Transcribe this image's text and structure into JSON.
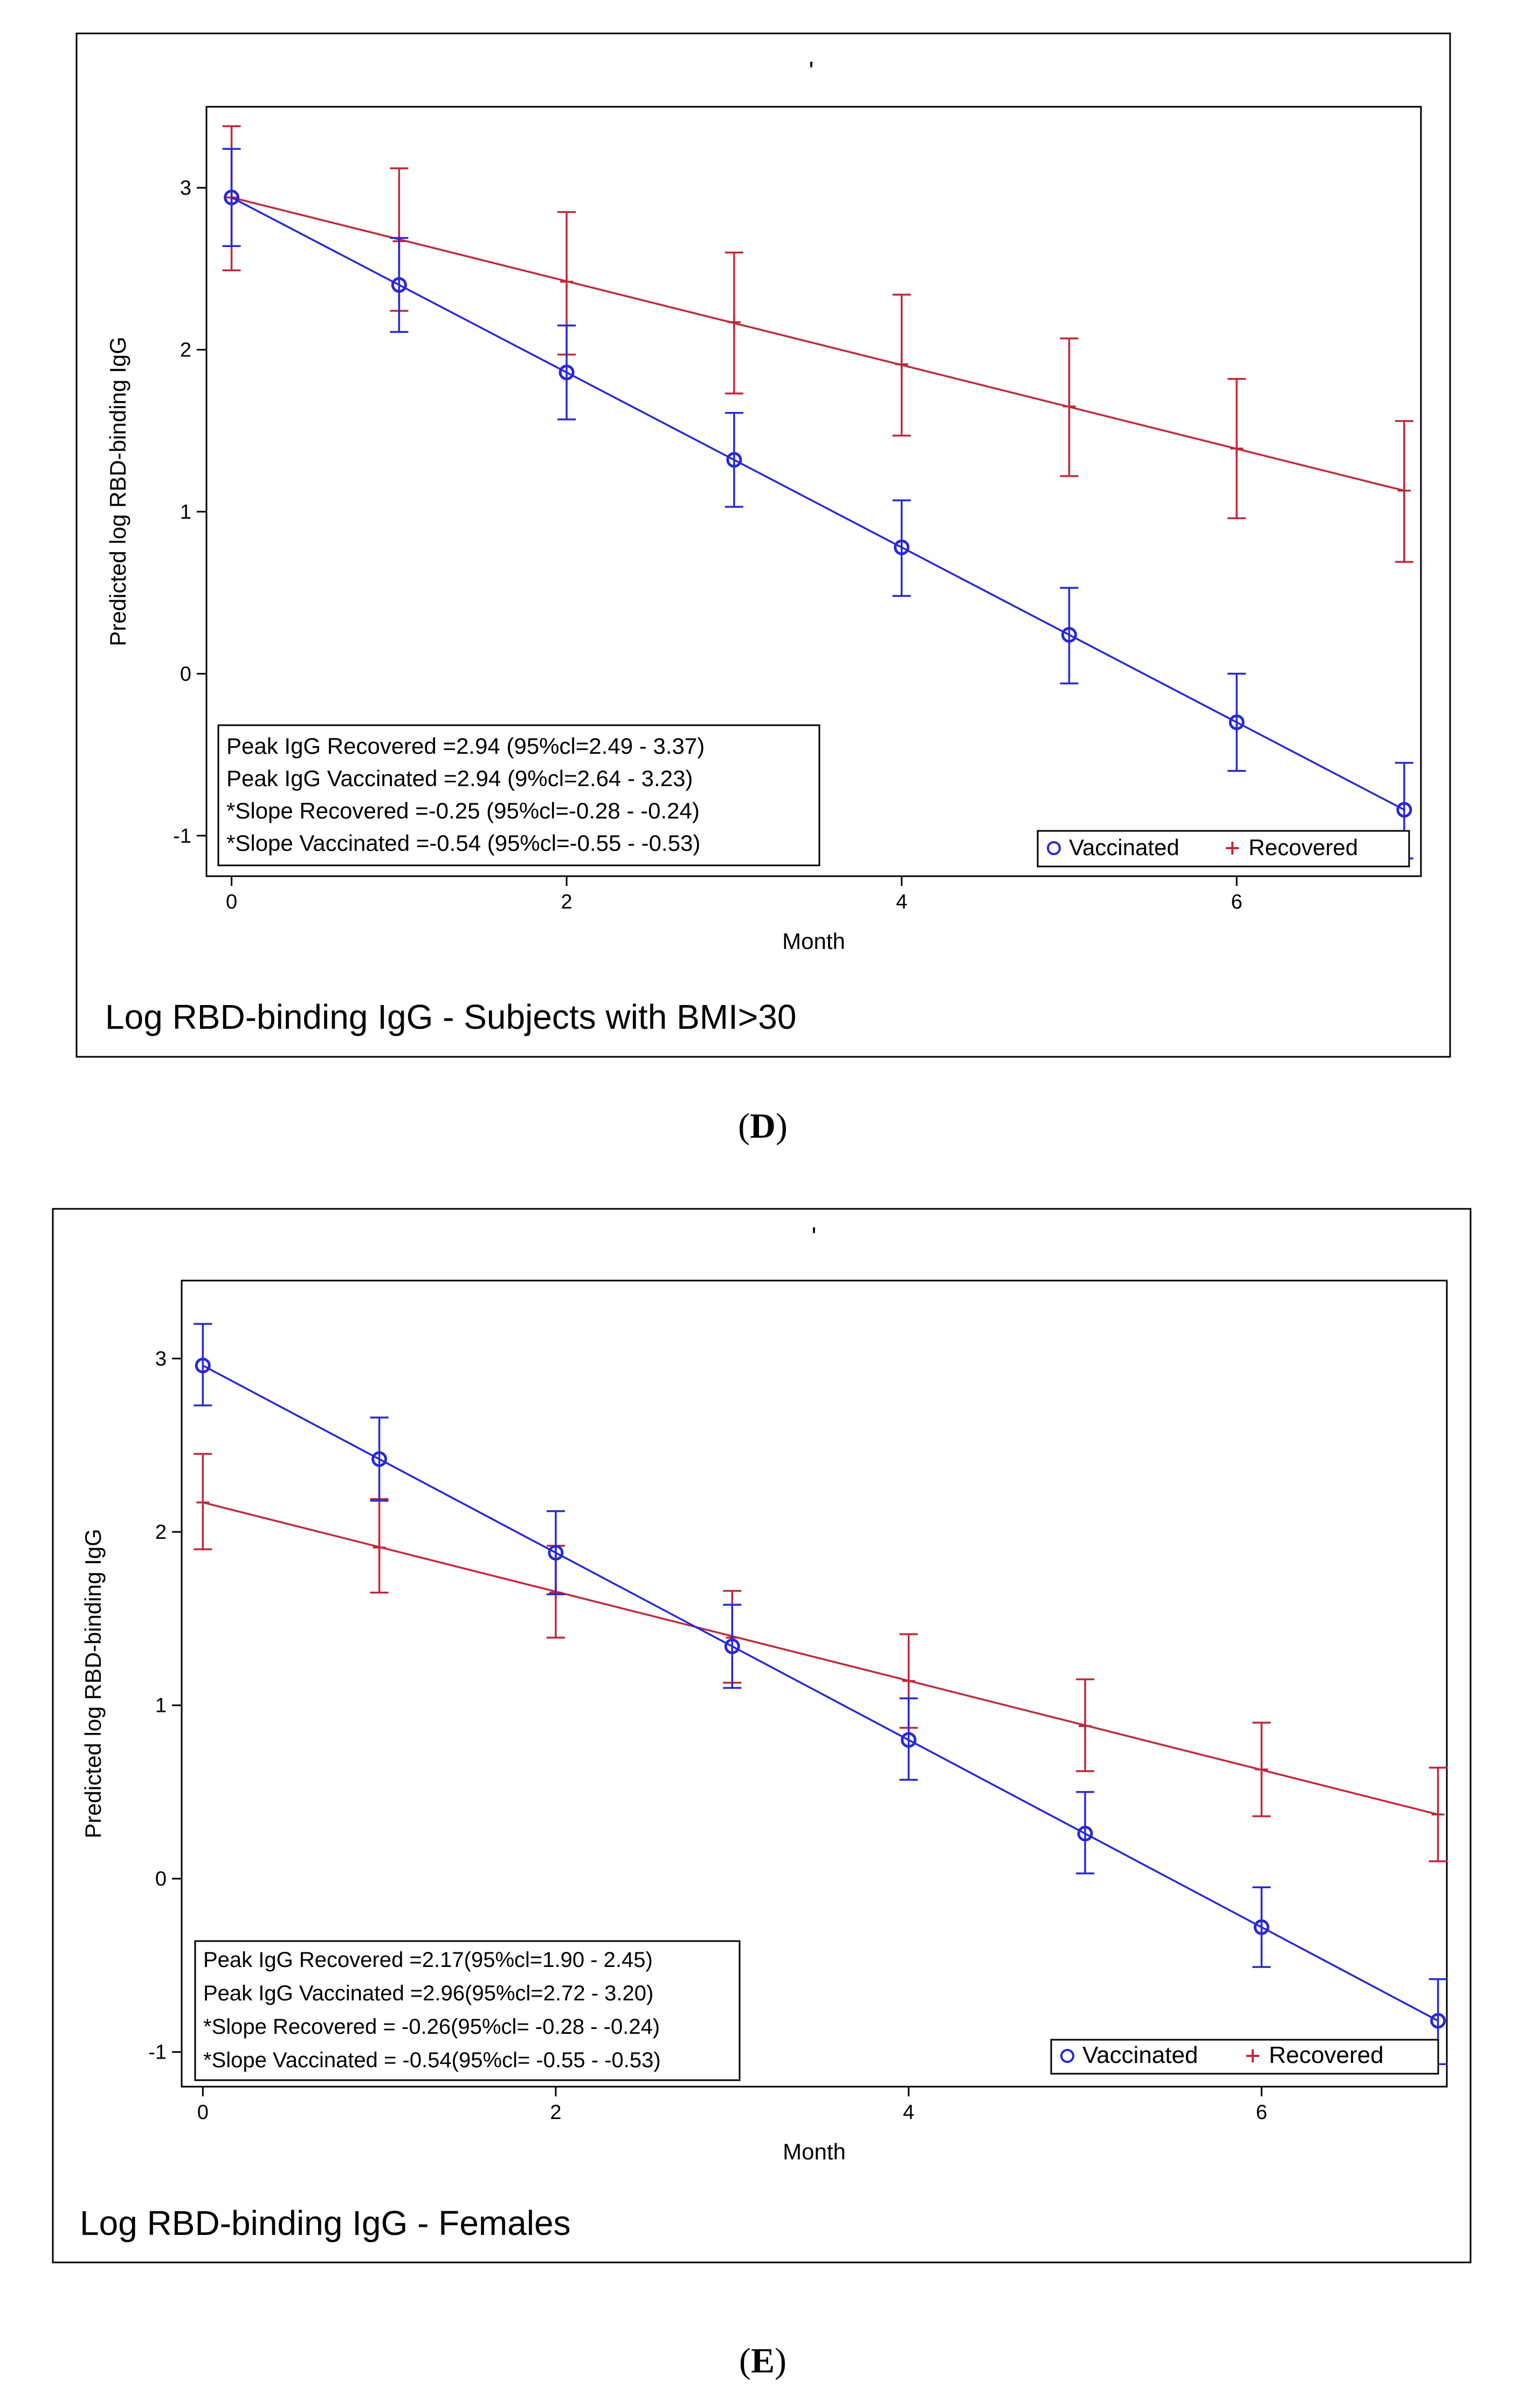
{
  "colors": {
    "vaccinated": "#2828d8",
    "recovered": "#c0283a",
    "axis": "#000000",
    "frame": "#000000",
    "background": "#ffffff"
  },
  "chart_data": [
    {
      "panel_label": "D",
      "type": "line",
      "stray_mark": "'",
      "caption": "Log RBD-binding IgG - Subjects  with BMI>30",
      "xlabel": "Month",
      "ylabel": "Predicted log RBD-binding IgG",
      "xlim": [
        -0.15,
        7.1
      ],
      "ylim": [
        -1.25,
        3.5
      ],
      "x_ticks": [
        0,
        2,
        4,
        6
      ],
      "y_ticks": [
        3,
        2,
        1,
        0,
        -1
      ],
      "annotations": [
        "Peak IgG Recovered =2.94 (95%cl=2.49 - 3.37)",
        "Peak IgG Vaccinated =2.94 (9%cl=2.64 - 3.23)",
        "*Slope Recovered =-0.25 (95%cl=-0.28 - -0.24)",
        "*Slope Vaccinated =-0.54 (95%cl=-0.55 - -0.53)"
      ],
      "legend": {
        "position": "bottom-right",
        "entries": [
          "Vaccinated",
          "Recovered"
        ],
        "markers": [
          "o",
          "+"
        ]
      },
      "series": [
        {
          "name": "Vaccinated",
          "marker": "circle",
          "x": [
            0,
            1,
            2,
            3,
            4,
            5,
            6,
            7
          ],
          "y": [
            2.94,
            2.4,
            1.86,
            1.32,
            0.78,
            0.24,
            -0.3,
            -0.84
          ],
          "lower": [
            2.64,
            2.11,
            1.57,
            1.03,
            0.48,
            -0.06,
            -0.6,
            -1.14
          ],
          "upper": [
            3.24,
            2.69,
            2.15,
            1.61,
            1.07,
            0.53,
            0.0,
            -0.55
          ]
        },
        {
          "name": "Recovered",
          "marker": "plus",
          "x": [
            0,
            1,
            2,
            3,
            4,
            5,
            6,
            7
          ],
          "y": [
            2.94,
            2.67,
            2.42,
            2.17,
            1.91,
            1.65,
            1.39,
            1.13
          ],
          "lower": [
            2.49,
            2.24,
            1.97,
            1.73,
            1.47,
            1.22,
            0.96,
            0.69
          ],
          "upper": [
            3.38,
            3.12,
            2.85,
            2.6,
            2.34,
            2.07,
            1.82,
            1.56
          ]
        }
      ]
    },
    {
      "panel_label": "E",
      "type": "line",
      "stray_mark": "'",
      "caption": "Log RBD-binding IgG - Females",
      "xlabel": "Month",
      "ylabel": "Predicted log RBD-binding IgG",
      "xlim": [
        -0.12,
        7.05
      ],
      "ylim": [
        -1.2,
        3.45
      ],
      "x_ticks": [
        0,
        2,
        4,
        6
      ],
      "y_ticks": [
        3,
        2,
        1,
        0,
        -1
      ],
      "annotations": [
        "Peak IgG Recovered =2.17(95%cl=1.90 - 2.45)",
        "Peak IgG Vaccinated =2.96(95%cl=2.72 - 3.20)",
        "*Slope Recovered = -0.26(95%cl= -0.28 - -0.24)",
        "*Slope Vaccinated = -0.54(95%cl= -0.55 - -0.53)"
      ],
      "legend": {
        "position": "bottom-right",
        "entries": [
          "Vaccinated",
          "Recovered"
        ],
        "markers": [
          "o",
          "+"
        ]
      },
      "series": [
        {
          "name": "Vaccinated",
          "marker": "circle",
          "x": [
            0,
            1,
            2,
            3,
            4,
            5,
            6,
            7
          ],
          "y": [
            2.96,
            2.42,
            1.88,
            1.34,
            0.8,
            0.26,
            -0.28,
            -0.82
          ],
          "lower": [
            2.73,
            2.18,
            1.64,
            1.1,
            0.57,
            0.03,
            -0.51,
            -1.07
          ],
          "upper": [
            3.2,
            2.66,
            2.12,
            1.58,
            1.04,
            0.5,
            -0.05,
            -0.58
          ]
        },
        {
          "name": "Recovered",
          "marker": "plus",
          "x": [
            0,
            1,
            2,
            3,
            4,
            5,
            6,
            7
          ],
          "y": [
            2.17,
            1.91,
            1.65,
            1.39,
            1.14,
            0.88,
            0.63,
            0.37
          ],
          "lower": [
            1.9,
            1.65,
            1.39,
            1.13,
            0.87,
            0.62,
            0.36,
            0.1
          ],
          "upper": [
            2.45,
            2.19,
            1.92,
            1.66,
            1.41,
            1.15,
            0.9,
            0.64
          ]
        }
      ]
    }
  ]
}
